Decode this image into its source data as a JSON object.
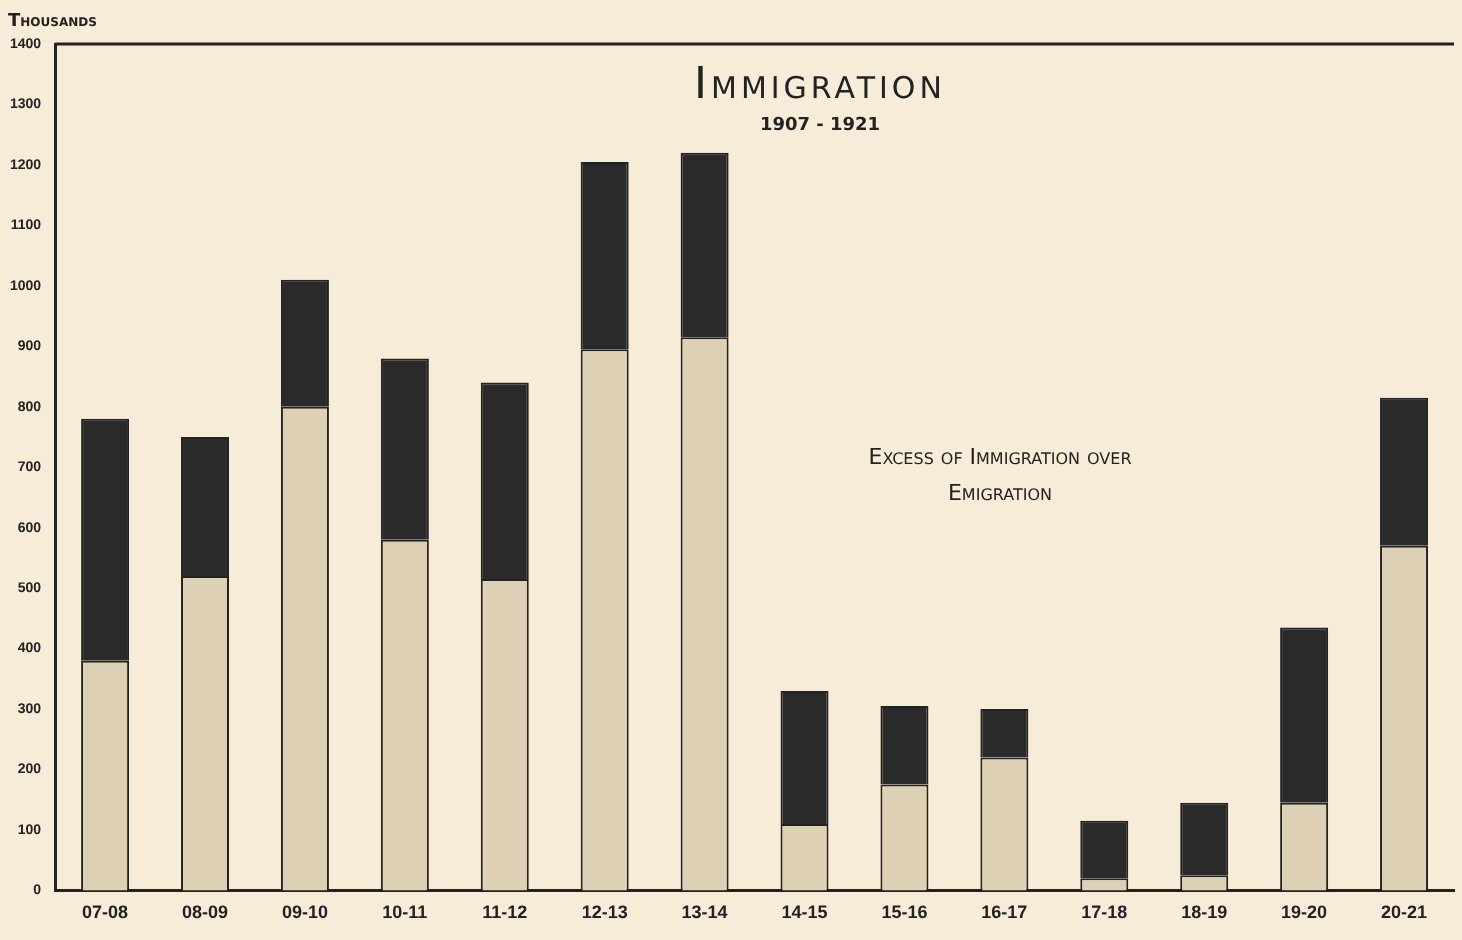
{
  "chart_data": {
    "type": "bar",
    "title": "Immigration",
    "subtitle": "1907 - 1921",
    "ylabel": "Thousands",
    "categories": [
      "07-08",
      "08-09",
      "09-10",
      "10-11",
      "11-12",
      "12-13",
      "13-14",
      "14-15",
      "15-16",
      "16-17",
      "17-18",
      "18-19",
      "19-20",
      "20-21"
    ],
    "series": [
      {
        "name": "Excess of Immigration over Emigration",
        "color": "#ddd0b4",
        "values": [
          380,
          520,
          800,
          580,
          515,
          895,
          915,
          110,
          175,
          220,
          20,
          25,
          145,
          570
        ]
      },
      {
        "color": "#2a2a2a",
        "values": [
          400,
          230,
          210,
          300,
          325,
          310,
          305,
          220,
          130,
          80,
          95,
          120,
          290,
          245
        ]
      }
    ],
    "stacked": true,
    "ylim": [
      0,
      1400
    ],
    "yticks": [
      0,
      100,
      200,
      300,
      400,
      500,
      600,
      700,
      800,
      900,
      1000,
      1100,
      1200,
      1300,
      1400
    ],
    "legend": false
  }
}
